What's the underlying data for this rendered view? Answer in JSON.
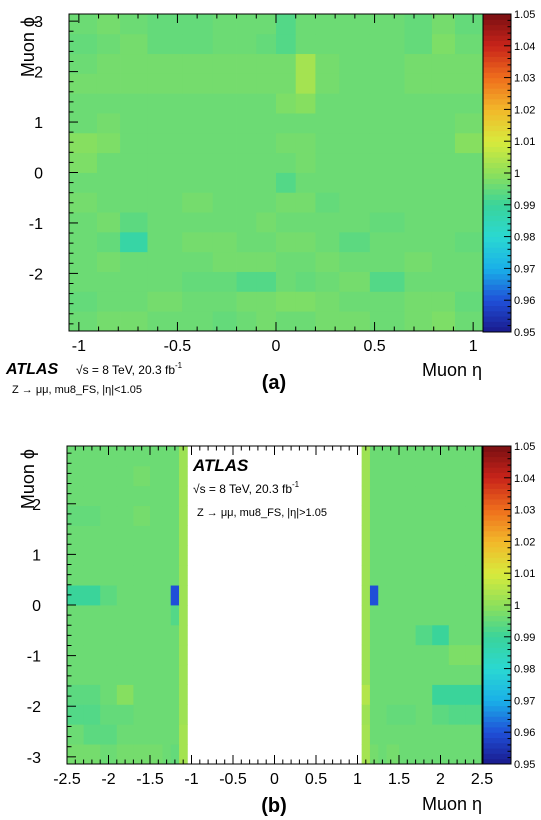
{
  "colorscale": {
    "min": 0.95,
    "max": 1.05,
    "stops": [
      "#1a1a8c",
      "#1f4fd8",
      "#1ab0e8",
      "#2ad8d2",
      "#3ad49a",
      "#8ee05a",
      "#d8ea3c",
      "#f2b82a",
      "#ef6e1c",
      "#c8241a",
      "#7a0f12"
    ],
    "tick_labels": [
      "0.95",
      "0.96",
      "0.97",
      "0.98",
      "0.99",
      "1",
      "1.01",
      "1.02",
      "1.03",
      "1.04",
      "1.05"
    ]
  },
  "panels": [
    {
      "xlabel": "Muon η",
      "ylabel": "Muon ϕ",
      "caption": "(a)",
      "xticks": [
        "-1",
        "-0.5",
        "0",
        "0.5",
        "1"
      ],
      "yticks": [
        "-2",
        "-1",
        "0",
        "1",
        "2",
        "3"
      ],
      "atlas": "ATLAS",
      "energy": "√s = 8 TeV, 20.3 fb",
      "lumi_sup": "-1",
      "selection": "Z → μμ,  mu8_FS,  |η|<1.05"
    },
    {
      "xlabel": "Muon η",
      "ylabel": "Muon ϕ",
      "caption": "(b)",
      "xticks": [
        "-2.5",
        "-2",
        "-1.5",
        "-1",
        "-0.5",
        "0",
        "0.5",
        "1",
        "1.5",
        "2",
        "2.5"
      ],
      "yticks": [
        "-3",
        "-2",
        "-1",
        "0",
        "1",
        "2"
      ],
      "atlas": "ATLAS",
      "energy": "√s = 8 TeV, 20.3 fb",
      "lumi_sup": "-1",
      "selection": "Z → μμ,  mu8_FS,  |η|>1.05"
    }
  ],
  "chart_data": [
    {
      "type": "heatmap",
      "title": "",
      "xlabel": "Muon η",
      "ylabel": "Muon ϕ",
      "zlabel": "",
      "xlim": [
        -1.05,
        1.05
      ],
      "ylim": [
        -3.14159,
        3.14159
      ],
      "zlim": [
        0.95,
        1.05
      ],
      "x_edges": [
        -1.05,
        -0.908,
        -0.791,
        -0.652,
        -0.476,
        -0.321,
        -0.2,
        -0.1,
        0,
        0.1,
        0.2,
        0.321,
        0.476,
        0.652,
        0.791,
        0.908,
        1.05
      ],
      "y_edges": [
        -3.14159,
        -2.74889,
        -2.35619,
        -1.9635,
        -1.5708,
        -1.1781,
        -0.7854,
        -0.3927,
        0,
        0.3927,
        0.7854,
        1.1781,
        1.5708,
        1.9635,
        2.35619,
        2.74889,
        3.14159
      ],
      "z": [
        [
          0.996,
          0.997,
          0.997,
          0.996,
          0.996,
          0.995,
          0.996,
          0.997,
          0.996,
          0.996,
          0.997,
          0.997,
          0.996,
          0.997,
          0.998,
          0.996
        ],
        [
          0.995,
          0.996,
          0.996,
          0.997,
          0.996,
          0.996,
          0.997,
          0.997,
          0.998,
          0.998,
          0.997,
          0.996,
          0.996,
          0.997,
          0.997,
          0.995
        ],
        [
          0.996,
          0.996,
          0.996,
          0.996,
          0.995,
          0.995,
          0.993,
          0.993,
          0.996,
          0.995,
          0.996,
          0.997,
          0.993,
          0.996,
          0.996,
          0.996
        ],
        [
          0.996,
          0.997,
          0.996,
          0.996,
          0.996,
          0.997,
          0.997,
          0.997,
          0.996,
          0.996,
          0.997,
          0.996,
          0.996,
          0.997,
          0.996,
          0.996
        ],
        [
          0.996,
          0.995,
          0.988,
          0.996,
          0.997,
          0.997,
          0.996,
          0.996,
          0.997,
          0.997,
          0.996,
          0.994,
          0.996,
          0.996,
          0.996,
          0.995
        ],
        [
          0.996,
          0.997,
          0.994,
          0.996,
          0.996,
          0.996,
          0.996,
          0.997,
          0.996,
          0.996,
          0.996,
          0.996,
          0.995,
          0.996,
          0.996,
          0.996
        ],
        [
          0.997,
          0.996,
          0.996,
          0.996,
          0.997,
          0.996,
          0.996,
          0.996,
          0.997,
          0.997,
          0.995,
          0.996,
          0.996,
          0.996,
          0.996,
          0.996
        ],
        [
          0.996,
          0.996,
          0.996,
          0.996,
          0.996,
          0.996,
          0.996,
          0.996,
          0.993,
          0.996,
          0.996,
          0.996,
          0.996,
          0.996,
          0.996,
          0.996
        ],
        [
          0.998,
          0.996,
          0.996,
          0.996,
          0.996,
          0.996,
          0.996,
          0.996,
          0.996,
          0.997,
          0.996,
          0.996,
          0.996,
          0.996,
          0.996,
          0.996
        ],
        [
          0.999,
          0.998,
          0.996,
          0.996,
          0.996,
          0.996,
          0.996,
          0.996,
          0.997,
          0.997,
          0.996,
          0.996,
          0.996,
          0.996,
          0.996,
          0.999
        ],
        [
          0.996,
          0.997,
          0.996,
          0.996,
          0.996,
          0.996,
          0.996,
          0.996,
          0.996,
          0.996,
          0.996,
          0.996,
          0.996,
          0.996,
          0.996,
          0.997
        ],
        [
          0.996,
          0.996,
          0.996,
          0.996,
          0.996,
          0.996,
          0.996,
          0.996,
          0.998,
          0.999,
          0.996,
          0.996,
          0.996,
          0.996,
          0.996,
          0.996
        ],
        [
          0.997,
          0.997,
          0.997,
          0.997,
          0.997,
          0.997,
          0.997,
          0.997,
          0.997,
          1.003,
          0.997,
          0.996,
          0.996,
          0.997,
          0.997,
          0.997
        ],
        [
          0.996,
          0.997,
          0.997,
          0.997,
          0.997,
          0.997,
          0.997,
          0.997,
          0.997,
          1.003,
          0.997,
          0.996,
          0.996,
          0.997,
          0.997,
          0.997
        ],
        [
          0.995,
          0.996,
          0.997,
          0.995,
          0.995,
          0.996,
          0.996,
          0.995,
          0.993,
          0.996,
          0.996,
          0.996,
          0.996,
          0.995,
          0.998,
          0.996
        ],
        [
          0.996,
          0.997,
          0.996,
          0.995,
          0.995,
          0.996,
          0.996,
          0.996,
          0.993,
          0.996,
          0.996,
          0.996,
          0.996,
          0.995,
          0.997,
          0.995
        ]
      ]
    },
    {
      "type": "heatmap",
      "title": "",
      "xlabel": "Muon η",
      "ylabel": "Muon ϕ",
      "zlabel": "",
      "xlim": [
        -2.5,
        2.5
      ],
      "ylim": [
        -3.14159,
        3.14159
      ],
      "zlim": [
        0.95,
        1.05
      ],
      "x_edges": [
        -2.5,
        -2.3,
        -2.1,
        -1.9,
        -1.7,
        -1.5,
        -1.35,
        -1.25,
        -1.15,
        -1.05,
        1.05,
        1.15,
        1.25,
        1.35,
        1.5,
        1.7,
        1.9,
        2.1,
        2.3,
        2.5
      ],
      "y_edges": [
        -3.14159,
        -2.74889,
        -2.35619,
        -1.9635,
        -1.5708,
        -1.1781,
        -0.7854,
        -0.3927,
        0,
        0.3927,
        0.7854,
        1.1781,
        1.5708,
        1.9635,
        2.35619,
        2.74889,
        3.14159
      ],
      "z": [
        [
          0.997,
          0.997,
          0.996,
          0.997,
          0.997,
          0.997,
          0.996,
          0.995,
          1.003,
          null,
          1.003,
          0.997,
          0.996,
          0.997,
          0.996,
          0.996,
          0.996,
          0.996,
          0.996
        ],
        [
          0.996,
          0.994,
          0.994,
          0.996,
          0.996,
          0.996,
          0.996,
          0.996,
          1.003,
          null,
          1.003,
          0.996,
          0.996,
          0.996,
          0.996,
          0.996,
          0.996,
          0.996,
          0.996
        ],
        [
          0.993,
          0.993,
          0.995,
          0.995,
          0.996,
          0.996,
          0.996,
          0.996,
          1.002,
          null,
          1.002,
          0.996,
          0.996,
          0.995,
          0.995,
          0.996,
          0.994,
          0.993,
          0.993
        ],
        [
          0.994,
          0.994,
          0.996,
          0.999,
          0.996,
          0.996,
          0.996,
          0.996,
          1.002,
          null,
          1.005,
          0.996,
          0.996,
          0.996,
          0.996,
          0.996,
          0.99,
          0.99,
          0.99
        ],
        [
          0.996,
          0.996,
          0.996,
          0.996,
          0.996,
          0.996,
          0.996,
          0.996,
          1.002,
          null,
          1.002,
          0.996,
          0.996,
          0.996,
          0.996,
          0.996,
          0.996,
          0.996,
          0.996
        ],
        [
          0.996,
          0.996,
          0.996,
          0.996,
          0.996,
          0.996,
          0.996,
          0.996,
          1.002,
          null,
          1.002,
          0.996,
          0.996,
          0.996,
          0.996,
          0.996,
          0.996,
          0.998,
          0.998
        ],
        [
          0.996,
          0.996,
          0.996,
          0.996,
          0.996,
          0.996,
          0.996,
          0.996,
          1.002,
          null,
          1.002,
          0.996,
          0.996,
          0.996,
          0.996,
          0.993,
          0.99,
          0.996,
          0.996
        ],
        [
          0.996,
          0.996,
          0.996,
          0.996,
          0.996,
          0.996,
          0.996,
          0.993,
          1.002,
          null,
          1.002,
          0.996,
          0.996,
          0.996,
          0.996,
          0.996,
          0.996,
          0.996,
          0.996
        ],
        [
          0.99,
          0.99,
          0.994,
          0.996,
          0.996,
          0.996,
          0.996,
          0.96,
          1.002,
          null,
          1.002,
          0.96,
          0.996,
          0.996,
          0.996,
          0.996,
          0.996,
          0.996,
          0.996
        ],
        [
          0.996,
          0.996,
          0.996,
          0.996,
          0.996,
          0.996,
          0.996,
          0.996,
          1.002,
          null,
          1.002,
          0.996,
          0.996,
          0.996,
          0.996,
          0.996,
          0.996,
          0.996,
          0.996
        ],
        [
          0.996,
          0.996,
          0.996,
          0.996,
          0.996,
          0.996,
          0.996,
          0.996,
          1.002,
          null,
          1.002,
          0.996,
          0.996,
          0.996,
          0.996,
          0.996,
          0.996,
          0.996,
          0.996
        ],
        [
          0.996,
          0.996,
          0.996,
          0.996,
          0.996,
          0.996,
          0.996,
          0.996,
          1.002,
          null,
          1.002,
          0.996,
          0.996,
          0.996,
          0.996,
          0.996,
          0.996,
          0.996,
          0.996
        ],
        [
          0.995,
          0.995,
          0.996,
          0.996,
          0.997,
          0.996,
          0.996,
          0.996,
          1.002,
          null,
          1.002,
          0.996,
          0.996,
          0.996,
          0.996,
          0.996,
          0.996,
          0.996,
          0.996
        ],
        [
          0.996,
          0.996,
          0.996,
          0.996,
          0.996,
          0.996,
          0.996,
          0.996,
          1.002,
          null,
          1.002,
          0.996,
          0.996,
          0.996,
          0.996,
          0.996,
          0.996,
          0.996,
          0.996
        ],
        [
          0.996,
          0.996,
          0.996,
          0.996,
          0.997,
          0.996,
          0.996,
          0.996,
          1.002,
          null,
          1.002,
          0.996,
          0.996,
          0.996,
          0.996,
          0.996,
          0.996,
          0.996,
          0.996
        ],
        [
          0.996,
          0.996,
          0.996,
          0.996,
          0.996,
          0.996,
          0.996,
          0.996,
          1.002,
          null,
          1.002,
          0.996,
          0.996,
          0.996,
          0.996,
          0.996,
          0.996,
          0.996,
          0.996
        ]
      ]
    }
  ]
}
